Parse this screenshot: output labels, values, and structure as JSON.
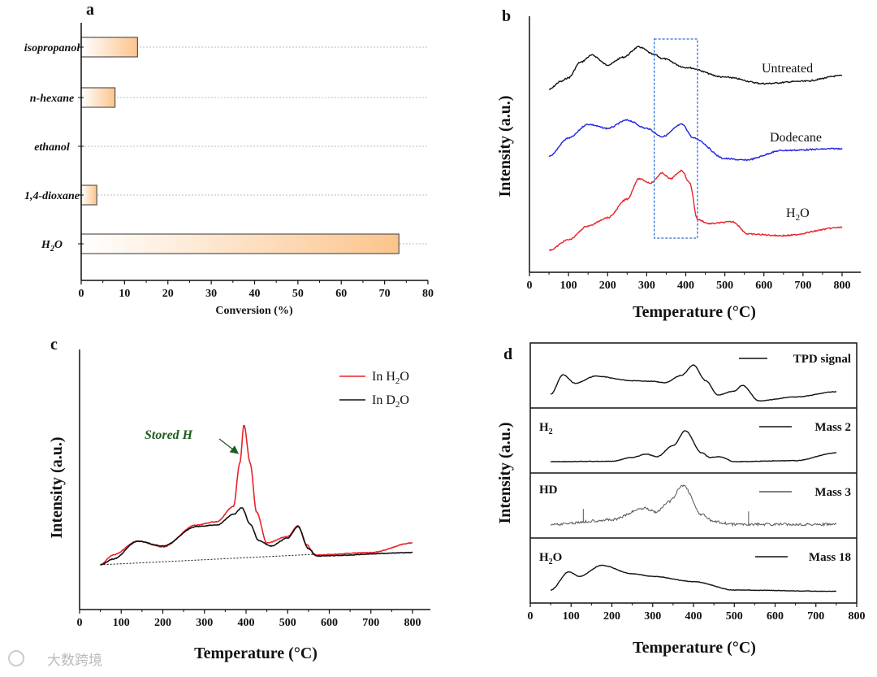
{
  "colors": {
    "bar_fill_start": "#ffffff",
    "bar_fill_end": "#fbc48c",
    "red": "#e8232a",
    "blue": "#1f22e0",
    "black": "#111111",
    "green": "#1e5c1e",
    "box": "#2a6fdc"
  },
  "watermark": "大数跨境",
  "chart_data": [
    {
      "panel": "a",
      "type": "bar",
      "orientation": "horizontal",
      "categories": [
        "isopropanol",
        "n-hexane",
        "ethanol",
        "1,4-dioxane",
        "H2O"
      ],
      "category_labels": {
        "base": [
          "isopropanol",
          "n-hexane",
          "ethanol",
          "1,4-dioxane",
          "H"
        ],
        "sub": [
          "",
          "",
          "",
          "",
          "2"
        ],
        "tail": [
          "",
          "",
          "",
          "",
          "O"
        ]
      },
      "values": [
        13.0,
        7.8,
        0,
        3.6,
        73.3
      ],
      "xlabel": "Conversion (%)",
      "xlim": [
        0,
        80
      ],
      "xticks": [
        "0",
        "10",
        "20",
        "30",
        "40",
        "50",
        "60",
        "70",
        "80"
      ],
      "grid": "dashed horizontal at categories"
    },
    {
      "panel": "b",
      "type": "line",
      "xlabel": "Temperature (°C)",
      "ylabel": "Intensity (a.u.)",
      "xlim": [
        0,
        850
      ],
      "ylim": [
        0,
        10
      ],
      "xticks": [
        "0",
        "100",
        "200",
        "300",
        "400",
        "500",
        "600",
        "700",
        "800"
      ],
      "highlight_box_x": [
        340,
        430
      ],
      "series": [
        {
          "name": "Untreated",
          "color": "#111111",
          "points": [
            [
              50,
              7.14
            ],
            [
              80,
              7.45
            ],
            [
              100,
              7.6
            ],
            [
              130,
              8.2
            ],
            [
              160,
              8.48
            ],
            [
              200,
              8.1
            ],
            [
              240,
              8.4
            ],
            [
              280,
              8.8
            ],
            [
              320,
              8.5
            ],
            [
              340,
              8.35
            ],
            [
              400,
              8.0
            ],
            [
              500,
              7.62
            ],
            [
              600,
              7.37
            ],
            [
              700,
              7.46
            ],
            [
              800,
              7.68
            ]
          ]
        },
        {
          "name": "Dodecane",
          "color": "#1f22e0",
          "points": [
            [
              50,
              4.54
            ],
            [
              100,
              5.24
            ],
            [
              150,
              5.78
            ],
            [
              200,
              5.62
            ],
            [
              250,
              5.94
            ],
            [
              300,
              5.62
            ],
            [
              340,
              5.3
            ],
            [
              390,
              5.78
            ],
            [
              420,
              5.24
            ],
            [
              500,
              4.44
            ],
            [
              550,
              4.38
            ],
            [
              650,
              4.76
            ],
            [
              800,
              4.83
            ]
          ]
        },
        {
          "name": "H",
          "name_sub": "2",
          "name_tail": "O",
          "color": "#e8232a",
          "points": [
            [
              50,
              0.86
            ],
            [
              100,
              1.27
            ],
            [
              150,
              1.81
            ],
            [
              200,
              2.13
            ],
            [
              250,
              2.86
            ],
            [
              280,
              3.65
            ],
            [
              310,
              3.49
            ],
            [
              340,
              3.87
            ],
            [
              360,
              3.65
            ],
            [
              390,
              3.97
            ],
            [
              410,
              3.49
            ],
            [
              430,
              2.06
            ],
            [
              460,
              1.9
            ],
            [
              520,
              1.97
            ],
            [
              560,
              1.49
            ],
            [
              650,
              1.43
            ],
            [
              800,
              1.75
            ]
          ]
        }
      ]
    },
    {
      "panel": "c",
      "type": "line",
      "xlabel": "Temperature (°C)",
      "ylabel": "Intensity (a.u.)",
      "xlim": [
        0,
        850
      ],
      "ylim": [
        0,
        10
      ],
      "xticks": [
        "0",
        "100",
        "200",
        "300",
        "400",
        "500",
        "600",
        "700",
        "800"
      ],
      "annotation": "Stored H",
      "baseline": [
        [
          50,
          1.72
        ],
        [
          560,
          2.12
        ]
      ],
      "series": [
        {
          "name": "In H",
          "name_sub": "2",
          "name_tail": "O",
          "color": "#e8232a",
          "points": [
            [
              50,
              1.72
            ],
            [
              80,
              2.1
            ],
            [
              140,
              2.63
            ],
            [
              200,
              2.41
            ],
            [
              280,
              3.25
            ],
            [
              330,
              3.38
            ],
            [
              370,
              3.97
            ],
            [
              385,
              5.63
            ],
            [
              395,
              7.1
            ],
            [
              410,
              5.63
            ],
            [
              425,
              3.75
            ],
            [
              450,
              2.56
            ],
            [
              500,
              2.81
            ],
            [
              525,
              3.22
            ],
            [
              545,
              2.5
            ],
            [
              565,
              2.1
            ],
            [
              700,
              2.19
            ],
            [
              800,
              2.56
            ]
          ]
        },
        {
          "name": "In D",
          "name_sub": "2",
          "name_tail": "O",
          "color": "#111111",
          "points": [
            [
              50,
              1.72
            ],
            [
              80,
              1.94
            ],
            [
              140,
              2.63
            ],
            [
              200,
              2.44
            ],
            [
              280,
              3.19
            ],
            [
              330,
              3.25
            ],
            [
              370,
              3.66
            ],
            [
              390,
              3.91
            ],
            [
              410,
              3.28
            ],
            [
              430,
              2.66
            ],
            [
              460,
              2.44
            ],
            [
              500,
              2.75
            ],
            [
              525,
              3.19
            ],
            [
              550,
              2.34
            ],
            [
              570,
              2.06
            ],
            [
              800,
              2.19
            ]
          ]
        }
      ]
    },
    {
      "panel": "d",
      "type": "line",
      "stacked_subplots": true,
      "xlabel": "Temperature (°C)",
      "ylabel": "Intensity (a.u.)",
      "xlim": [
        0,
        800
      ],
      "ylim": [
        0,
        1
      ],
      "xticks": [
        "0",
        "100",
        "200",
        "300",
        "400",
        "500",
        "600",
        "700",
        "800"
      ],
      "series": [
        {
          "name": "TPD signal",
          "species": "",
          "color": "#111111",
          "points": [
            [
              50,
              0.21
            ],
            [
              80,
              0.51
            ],
            [
              110,
              0.38
            ],
            [
              160,
              0.49
            ],
            [
              250,
              0.42
            ],
            [
              300,
              0.41
            ],
            [
              330,
              0.39
            ],
            [
              370,
              0.5
            ],
            [
              400,
              0.66
            ],
            [
              430,
              0.42
            ],
            [
              460,
              0.2
            ],
            [
              500,
              0.26
            ],
            [
              520,
              0.35
            ],
            [
              560,
              0.11
            ],
            [
              650,
              0.17
            ],
            [
              750,
              0.25
            ]
          ]
        },
        {
          "name": "Mass 2",
          "species": "H",
          "species_sub": "2",
          "species_tail": "",
          "color": "#111111",
          "points": [
            [
              50,
              0.175
            ],
            [
              200,
              0.18
            ],
            [
              250,
              0.24
            ],
            [
              285,
              0.29
            ],
            [
              310,
              0.25
            ],
            [
              350,
              0.42
            ],
            [
              380,
              0.65
            ],
            [
              420,
              0.31
            ],
            [
              440,
              0.24
            ],
            [
              465,
              0.25
            ],
            [
              500,
              0.175
            ],
            [
              650,
              0.19
            ],
            [
              750,
              0.31
            ]
          ]
        },
        {
          "name": "Mass 3",
          "species": "HD",
          "species_sub": "",
          "species_tail": "",
          "color": "#555555",
          "noisy": true,
          "spikes": [
            130,
            535
          ],
          "points": [
            [
              50,
              0.21
            ],
            [
              200,
              0.28
            ],
            [
              280,
              0.46
            ],
            [
              310,
              0.4
            ],
            [
              340,
              0.56
            ],
            [
              375,
              0.81
            ],
            [
              420,
              0.36
            ],
            [
              450,
              0.25
            ],
            [
              500,
              0.21
            ],
            [
              750,
              0.21
            ]
          ]
        },
        {
          "name": "Mass 18",
          "species": "H",
          "species_sub": "2",
          "species_tail": "O",
          "color": "#111111",
          "points": [
            [
              50,
              0.2
            ],
            [
              95,
              0.48
            ],
            [
              120,
              0.41
            ],
            [
              175,
              0.58
            ],
            [
              250,
              0.45
            ],
            [
              300,
              0.41
            ],
            [
              400,
              0.33
            ],
            [
              500,
              0.2
            ],
            [
              750,
              0.18
            ]
          ]
        }
      ]
    }
  ]
}
